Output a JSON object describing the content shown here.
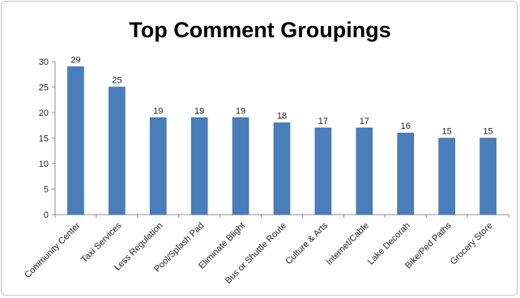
{
  "chart_data": {
    "type": "bar",
    "title": "Top Comment Groupings",
    "xlabel": "",
    "ylabel": "",
    "categories": [
      "Community Center",
      "Taxi Services",
      "Less Regulation",
      "Pool/Splash Pad",
      "Eliminate Blight",
      "Bus or Shuttle Route",
      "Culture & Arts",
      "Internet/Cable",
      "Lake Decorah",
      "Bike/Ped Paths",
      "Grocery Store"
    ],
    "values": [
      29,
      25,
      19,
      19,
      19,
      18,
      17,
      17,
      16,
      15,
      15
    ],
    "ylim": [
      0,
      30
    ],
    "yticks": [
      0,
      5,
      10,
      15,
      20,
      25,
      30
    ],
    "grid": false,
    "legend": "none",
    "bar_color": "#4a7ebb",
    "bar_edge_color": "#3a6aa5"
  }
}
